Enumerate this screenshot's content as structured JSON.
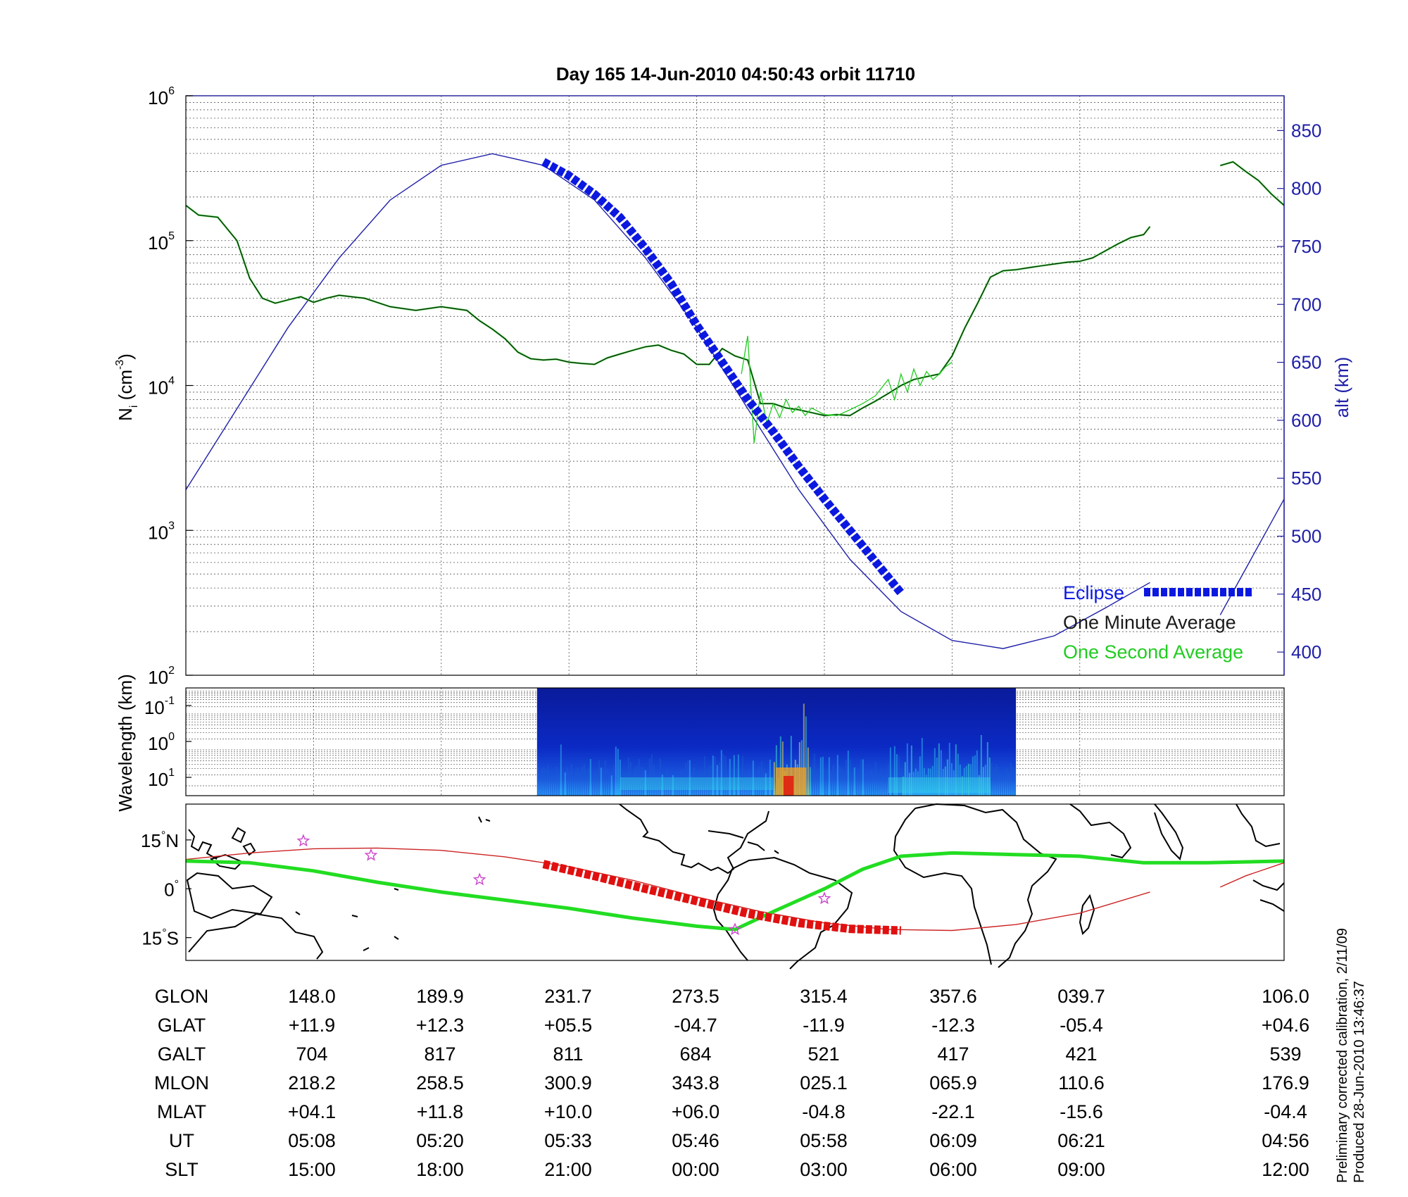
{
  "title": "Day 165  14-Jun-2010 04:50:43   orbit 11710",
  "colors": {
    "ni_avg": "#1a1a1a",
    "ni_sec": "#22cc22",
    "alt": "#1f1fa8",
    "eclipse": "#0b18e0",
    "eclipse_map": "#e01010",
    "right_axis": "#1f1fa8",
    "equator": "#22dd22",
    "orbit_track": "#cc2222",
    "star": "#cc44cc"
  },
  "chart_data": [
    {
      "type": "line",
      "ylabel": "N",
      "ylabel_sub": "i",
      "ylabel_tail": " (cm",
      "ylabel_sup": "-3",
      "ylabel_end": ")",
      "yscale": "log",
      "ylim": [
        100,
        1000000
      ],
      "yticks": [
        {
          "base": "10",
          "exp": "2",
          "value": 100
        },
        {
          "base": "10",
          "exp": "3",
          "value": 1000
        },
        {
          "base": "10",
          "exp": "4",
          "value": 10000
        },
        {
          "base": "10",
          "exp": "5",
          "value": 100000
        },
        {
          "base": "10",
          "exp": "6",
          "value": 1000000
        }
      ],
      "y2label": "alt (km)",
      "y2lim": [
        380,
        880
      ],
      "y2ticks": [
        "400",
        "450",
        "500",
        "550",
        "600",
        "650",
        "700",
        "750",
        "800",
        "850"
      ],
      "xlim": [
        0,
        86
      ],
      "grid": true,
      "legend_position": "bottom-right",
      "legend": [
        {
          "label": "Eclipse",
          "color": "#0b18e0",
          "style": "thick-dashed"
        },
        {
          "label": "One Minute Average",
          "color": "#1a1a1a",
          "style": "line"
        },
        {
          "label": "One Second Average",
          "color": "#22cc22",
          "style": "line"
        }
      ],
      "series": [
        {
          "name": "One Minute Average",
          "x": [
            0,
            1,
            2.5,
            4,
            5,
            6,
            7,
            8,
            9,
            10,
            11,
            12,
            14,
            16,
            18,
            20,
            22,
            23,
            24,
            25,
            26,
            27,
            28,
            29,
            30,
            31,
            32,
            33,
            34,
            35,
            36,
            37,
            38,
            39,
            40,
            41,
            42,
            43,
            44,
            45,
            46,
            47,
            48,
            49,
            50,
            51,
            52,
            53,
            54,
            55,
            56,
            57,
            58,
            59,
            60,
            61,
            62,
            63,
            64,
            65,
            66,
            67,
            68,
            69,
            70,
            71,
            72,
            73,
            74,
            75,
            75.5
          ],
          "y": [
            175000,
            150000,
            145000,
            100000,
            55000,
            40000,
            37000,
            39000,
            41000,
            37500,
            40000,
            42000,
            40000,
            35000,
            33000,
            35000,
            33000,
            28000,
            24500,
            21000,
            17000,
            15300,
            15000,
            15200,
            14500,
            14200,
            14000,
            15500,
            16500,
            17500,
            18500,
            19000,
            17500,
            16500,
            14000,
            14000,
            18000,
            16000,
            15000,
            7500,
            7500,
            7000,
            6800,
            6500,
            6200,
            6300,
            6200,
            7000,
            7800,
            8800,
            10000,
            11000,
            11500,
            12000,
            16000,
            25000,
            37000,
            56000,
            62000,
            63000,
            65000,
            67000,
            69000,
            71000,
            72000,
            76000,
            85000,
            95000,
            105000,
            110000,
            125000
          ]
        },
        {
          "name": "One Minute Average (end)",
          "x": [
            81,
            82,
            83,
            84,
            85,
            86
          ],
          "y": [
            330000,
            350000,
            300000,
            260000,
            210000,
            175000
          ]
        },
        {
          "name": "One Second Average",
          "x": [
            43.5,
            44,
            44.5,
            45,
            45.5,
            46,
            46.5,
            47,
            47.5,
            48,
            48.5,
            49,
            50,
            51,
            52,
            53,
            54,
            55,
            55.5,
            56,
            56.5,
            57,
            57.5,
            58,
            58.5,
            59,
            59.5,
            60
          ],
          "y": [
            12000,
            22000,
            4000,
            9000,
            5500,
            7500,
            6000,
            8000,
            6500,
            7200,
            6200,
            7000,
            6300,
            6200,
            6800,
            7500,
            8500,
            11000,
            8000,
            12000,
            9000,
            13000,
            10000,
            12500,
            11000,
            12000,
            13500,
            14500
          ]
        },
        {
          "name": "alt (km)",
          "axis": "right",
          "x": [
            0,
            4,
            8,
            12,
            16,
            20,
            24,
            28,
            32,
            36,
            40,
            44,
            48,
            52,
            56,
            60,
            64,
            68,
            72,
            75.5
          ],
          "y": [
            540,
            610,
            680,
            740,
            790,
            820,
            830,
            820,
            790,
            740,
            680,
            610,
            540,
            480,
            435,
            410,
            403,
            414,
            438,
            460
          ]
        },
        {
          "name": "alt (km) (end)",
          "axis": "right",
          "x": [
            81,
            82,
            83,
            84,
            85,
            86
          ],
          "y": [
            432,
            452,
            472,
            492,
            512,
            532
          ]
        },
        {
          "name": "Eclipse",
          "axis": "right",
          "x": [
            28,
            30,
            32,
            34,
            36,
            38,
            40,
            42,
            44,
            46,
            48,
            50,
            52,
            54,
            56
          ],
          "y": [
            823,
            811,
            795,
            775,
            748,
            718,
            682,
            650,
            618,
            590,
            560,
            532,
            505,
            478,
            451
          ]
        }
      ]
    },
    {
      "type": "heatmap",
      "ylabel": "Wavelength (km)",
      "yscale": "log",
      "yticks": [
        {
          "base": "10",
          "exp": "-1"
        },
        {
          "base": "10",
          "exp": "0"
        },
        {
          "base": "10",
          "exp": "1"
        }
      ],
      "data_x_range": [
        27.5,
        65
      ],
      "xlim": [
        0,
        86
      ]
    },
    {
      "type": "line",
      "title": "",
      "xlim": [
        0,
        86
      ],
      "ylim": [
        -22,
        26
      ],
      "yticks": [
        {
          "deg": "15",
          "hemi": "N",
          "value": 15
        },
        {
          "deg": "0",
          "hemi": "",
          "value": 0
        },
        {
          "deg": "15",
          "hemi": "S",
          "value": -15
        }
      ],
      "series": [
        {
          "name": "magnetic equator",
          "x": [
            0,
            5,
            10,
            15,
            20,
            25,
            30,
            35,
            40,
            43,
            46,
            50,
            53,
            56,
            60,
            65,
            70,
            75,
            80,
            86
          ],
          "y": [
            8.5,
            8,
            5.5,
            2,
            -1,
            -3.5,
            -6,
            -9,
            -11.5,
            -12.5,
            -7,
            0,
            6,
            10,
            11,
            10.5,
            10,
            8,
            8,
            8.5
          ]
        },
        {
          "name": "orbit track",
          "x": [
            0,
            5,
            10,
            15,
            20,
            25,
            30,
            35,
            40,
            45,
            50,
            55,
            60,
            65,
            70,
            75.5
          ],
          "y": [
            9,
            11,
            12.3,
            12.5,
            11.8,
            9.8,
            6.8,
            2.6,
            -2.5,
            -7,
            -10.5,
            -12.5,
            -12.8,
            -11,
            -7.5,
            -1
          ]
        },
        {
          "name": "orbit track (end)",
          "x": [
            81,
            83,
            86
          ],
          "y": [
            0.5,
            4,
            8
          ]
        },
        {
          "name": "eclipse segment",
          "x": [
            28,
            32,
            36,
            40,
            44,
            48,
            52,
            56
          ],
          "y": [
            7.6,
            3.9,
            0.0,
            -3.8,
            -7.6,
            -10.5,
            -12.3,
            -12.8
          ]
        },
        {
          "name": "stars",
          "x": [
            9.2,
            14.5,
            23,
            43,
            50
          ],
          "y": [
            14.7,
            10.3,
            2.8,
            -12.5,
            -3
          ]
        }
      ]
    }
  ],
  "table": {
    "labels": [
      "GLON",
      "GLAT",
      "GALT",
      "MLON",
      "MLAT",
      "UT",
      "SLT"
    ],
    "columns": [
      [
        "148.0",
        "+11.9",
        "704",
        "218.2",
        "+04.1",
        "05:08",
        "15:00"
      ],
      [
        "189.9",
        "+12.3",
        "817",
        "258.5",
        "+11.8",
        "05:20",
        "18:00"
      ],
      [
        "231.7",
        "+05.5",
        "811",
        "300.9",
        "+10.0",
        "05:33",
        "21:00"
      ],
      [
        "273.5",
        "-04.7",
        "684",
        "343.8",
        "+06.0",
        "05:46",
        "00:00"
      ],
      [
        "315.4",
        "-11.9",
        "521",
        "025.1",
        "-04.8",
        "05:58",
        "03:00"
      ],
      [
        "357.6",
        "-12.3",
        "417",
        "065.9",
        "-22.1",
        "06:09",
        "06:00"
      ],
      [
        "039.7",
        "-05.4",
        "421",
        "110.6",
        "-15.6",
        "06:21",
        "09:00"
      ],
      [
        "106.0",
        "+04.6",
        "539",
        "176.9",
        "-04.4",
        "04:56",
        "12:00"
      ]
    ]
  },
  "footnote": {
    "line1": "Preliminary corrected calibration, 2/11/09",
    "line2": "Produced 28-Jun-2010 13:46:37"
  }
}
